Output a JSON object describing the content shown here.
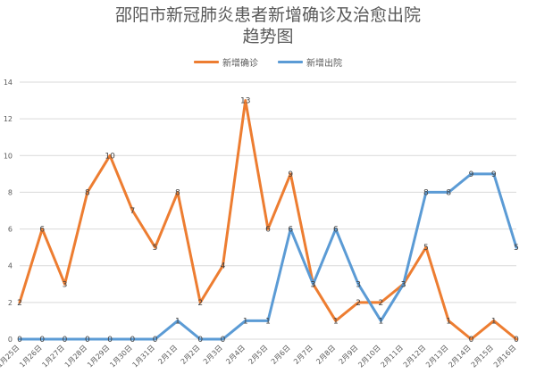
{
  "chart_data": {
    "type": "line",
    "title_lines": [
      "邵阳市新冠肺炎患者新增确诊及治愈出院",
      "趋势图"
    ],
    "xlabel": "",
    "ylabel": "",
    "ylim": [
      0,
      14
    ],
    "yticks": [
      0,
      2,
      4,
      6,
      8,
      10,
      12,
      14
    ],
    "grid": true,
    "legend_position": "top-center",
    "categories": [
      "1月25日",
      "1月26日",
      "1月27日",
      "1月28日",
      "1月29日",
      "1月30日",
      "1月31日",
      "2月1日",
      "2月2日",
      "2月3日",
      "2月4日",
      "2月5日",
      "2月6日",
      "2月7日",
      "2月8日",
      "2月9日",
      "2月10日",
      "2月11日",
      "2月12日",
      "2月13日",
      "2月14日",
      "2月15日",
      "2月16日"
    ],
    "series": [
      {
        "name": "新增确诊",
        "color": "#ED7D31",
        "values": [
          2,
          6,
          3,
          8,
          10,
          7,
          5,
          8,
          2,
          4,
          13,
          6,
          9,
          3,
          1,
          2,
          2,
          3,
          5,
          1,
          0,
          1,
          0
        ]
      },
      {
        "name": "新增出院",
        "color": "#5B9BD5",
        "values": [
          0,
          0,
          0,
          0,
          0,
          0,
          0,
          1,
          0,
          0,
          1,
          1,
          6,
          3,
          6,
          3,
          1,
          3,
          8,
          8,
          9,
          9,
          5
        ]
      }
    ]
  }
}
